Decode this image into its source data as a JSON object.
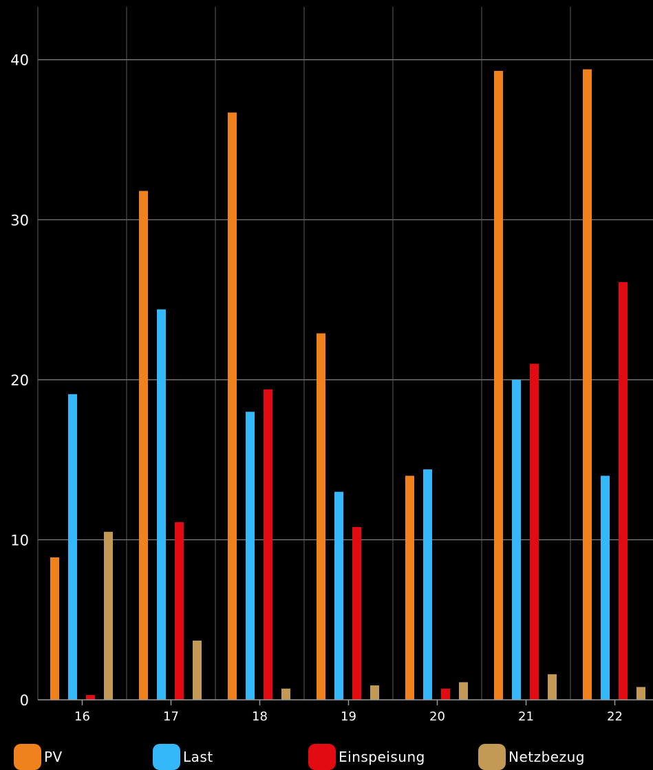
{
  "chart_data": {
    "type": "bar",
    "title": "",
    "xlabel": "",
    "ylabel": "",
    "categories": [
      "16",
      "17",
      "18",
      "19",
      "20",
      "21",
      "22"
    ],
    "ylim": [
      0,
      43.3
    ],
    "yticks": [
      "0",
      "10",
      "20",
      "30",
      "40"
    ],
    "grid": true,
    "legend_position": "bottom",
    "series": [
      {
        "name": "PV",
        "color": "#F0821E",
        "values": [
          8.9,
          31.8,
          36.7,
          22.9,
          14.0,
          39.3,
          39.4
        ]
      },
      {
        "name": "Last",
        "color": "#35B8FA",
        "values": [
          19.1,
          24.4,
          18.0,
          13.0,
          14.4,
          20.0,
          14.0
        ]
      },
      {
        "name": "Einspeisung",
        "color": "#E20B12",
        "values": [
          0.3,
          11.1,
          19.4,
          10.8,
          0.7,
          21.0,
          26.1
        ]
      },
      {
        "name": "Netzbezug",
        "color": "#C29A55",
        "values": [
          10.5,
          3.7,
          0.7,
          0.9,
          1.1,
          1.6,
          0.8
        ]
      }
    ]
  }
}
